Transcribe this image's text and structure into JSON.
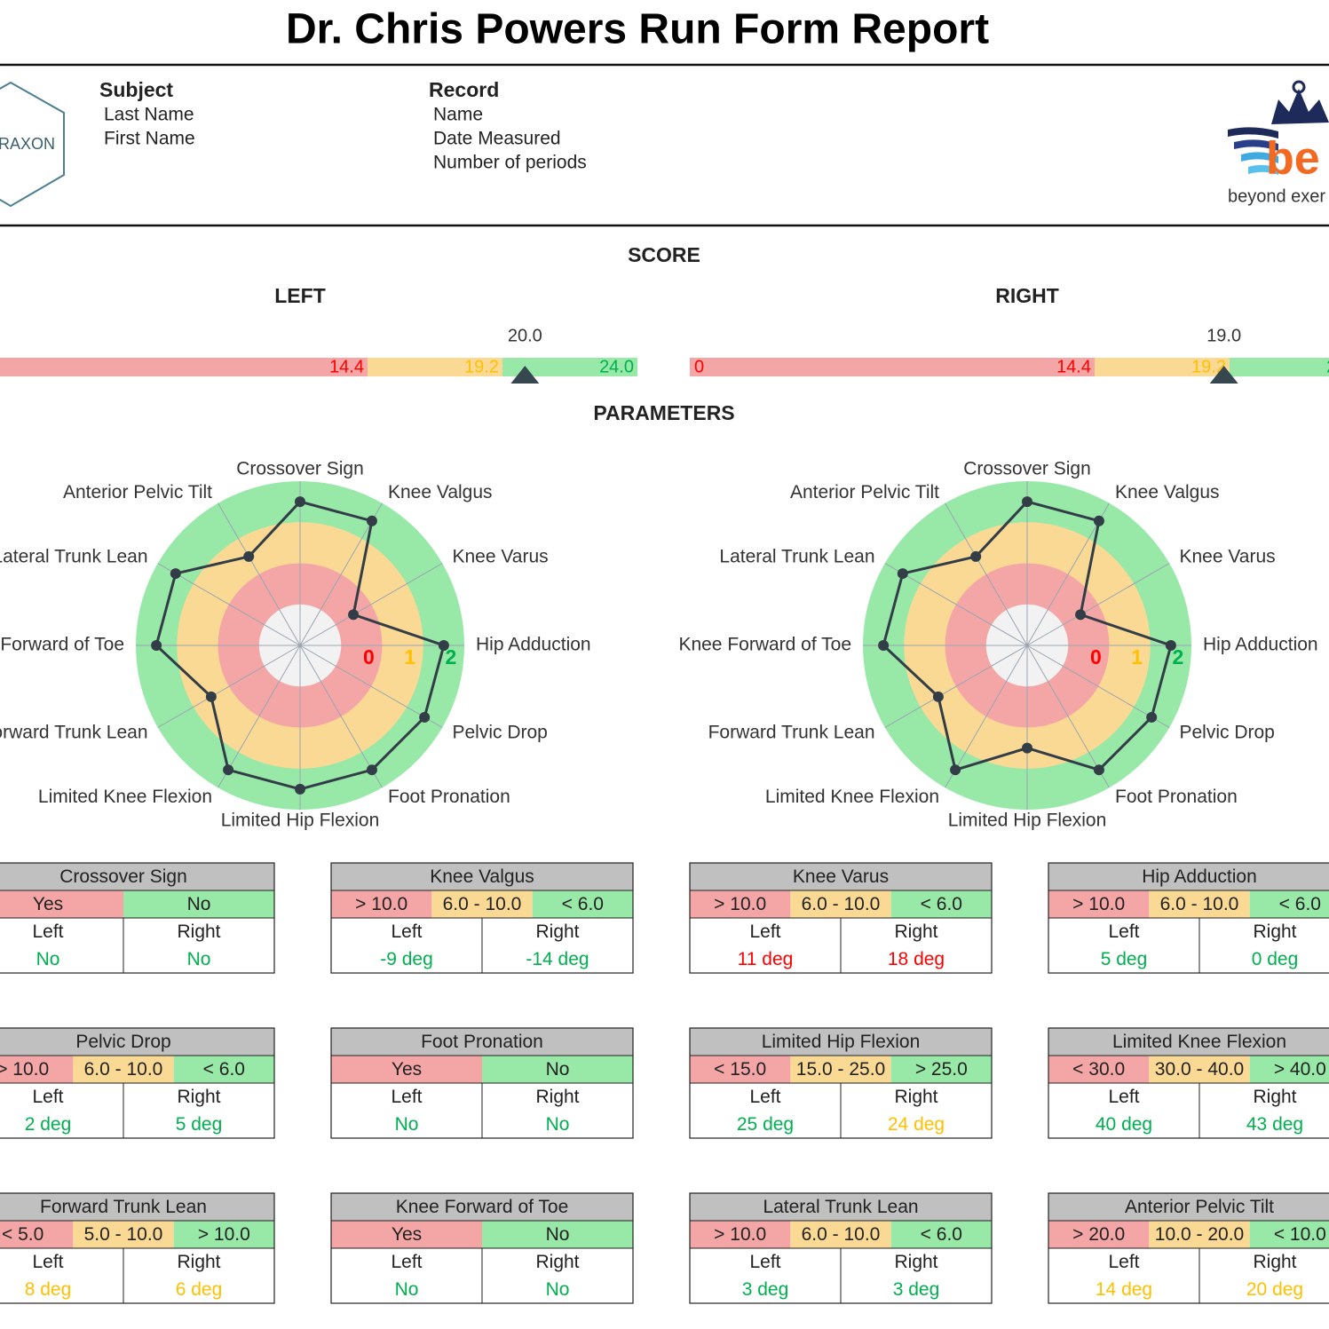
{
  "title": "Dr. Chris Powers Run Form Report",
  "header": {
    "logo_left": "RAXON",
    "subject": {
      "heading": "Subject",
      "fields": [
        "Last Name",
        "First Name"
      ]
    },
    "record": {
      "heading": "Record",
      "fields": [
        "Name",
        "Date Measured",
        "Number of periods"
      ]
    },
    "logo_right": {
      "mark": "be",
      "tagline": "beyond exer"
    }
  },
  "score": {
    "title": "SCORE",
    "ticks": [
      0,
      14.4,
      19.2,
      {
        "value": 24,
        "label": "24.0"
      }
    ],
    "left": {
      "label": "LEFT",
      "value": {
        "value": 20,
        "label": "20.0"
      }
    },
    "right": {
      "label": "RIGHT",
      "value": {
        "value": 19,
        "label": "19.0"
      }
    }
  },
  "parameters_title": "PARAMETERS",
  "radar": {
    "rlim": [
      -1.5,
      2.5
    ],
    "scale_labels": [
      0,
      1,
      2
    ]
  },
  "band_colors": [
    "#f4a6a6",
    "#fad994",
    "#98e8a8"
  ],
  "level_colors": [
    "#ff0000",
    "#ffc000",
    "#00b050"
  ],
  "side_labels": [
    "Left",
    "Right"
  ],
  "parameters": [
    {
      "name": "Crossover Sign",
      "ranges": [
        "Yes",
        "No"
      ],
      "left": "No",
      "right": "No",
      "score_left": 2,
      "score_right": 2
    },
    {
      "name": "Knee Valgus",
      "ranges": [
        "> 10.0",
        "6.0 - 10.0",
        "< 6.0"
      ],
      "left": "-9 deg",
      "right": "-14 deg",
      "score_left": 2,
      "score_right": 2
    },
    {
      "name": "Knee Varus",
      "ranges": [
        "> 10.0",
        "6.0 - 10.0",
        "< 6.0"
      ],
      "left": "11 deg",
      "right": "18 deg",
      "score_left": 0,
      "score_right": 0
    },
    {
      "name": "Hip Adduction",
      "ranges": [
        "> 10.0",
        "6.0 - 10.0",
        "< 6.0"
      ],
      "left": "5 deg",
      "right": "0 deg",
      "score_left": 2,
      "score_right": 2
    },
    {
      "name": "Pelvic Drop",
      "ranges": [
        "> 10.0",
        "6.0 - 10.0",
        "< 6.0"
      ],
      "left": "2 deg",
      "right": "5 deg",
      "score_left": 2,
      "score_right": 2
    },
    {
      "name": "Foot Pronation",
      "ranges": [
        "Yes",
        "No"
      ],
      "left": "No",
      "right": "No",
      "score_left": 2,
      "score_right": 2
    },
    {
      "name": "Limited Hip Flexion",
      "ranges": [
        "< 15.0",
        "15.0 - 25.0",
        "> 25.0"
      ],
      "left": "25 deg",
      "right": "24 deg",
      "score_left": 2,
      "score_right": 1
    },
    {
      "name": "Limited Knee Flexion",
      "ranges": [
        "< 30.0",
        "30.0 - 40.0",
        "> 40.0"
      ],
      "left": "40 deg",
      "right": "43 deg",
      "score_left": 2,
      "score_right": 2
    },
    {
      "name": "Forward Trunk Lean",
      "ranges": [
        "< 5.0",
        "5.0 - 10.0",
        "> 10.0"
      ],
      "left": "8 deg",
      "right": "6 deg",
      "score_left": 1,
      "score_right": 1
    },
    {
      "name": "Knee Forward of Toe",
      "ranges": [
        "Yes",
        "No"
      ],
      "left": "No",
      "right": "No",
      "score_left": 2,
      "score_right": 2
    },
    {
      "name": "Lateral Trunk Lean",
      "ranges": [
        "> 10.0",
        "6.0 - 10.0",
        "< 6.0"
      ],
      "left": "3 deg",
      "right": "3 deg",
      "score_left": 2,
      "score_right": 2
    },
    {
      "name": "Anterior Pelvic Tilt",
      "ranges": [
        "> 20.0",
        "10.0 - 20.0",
        "< 10.0"
      ],
      "left": "14 deg",
      "right": "20 deg",
      "score_left": 1,
      "score_right": 1
    }
  ]
}
